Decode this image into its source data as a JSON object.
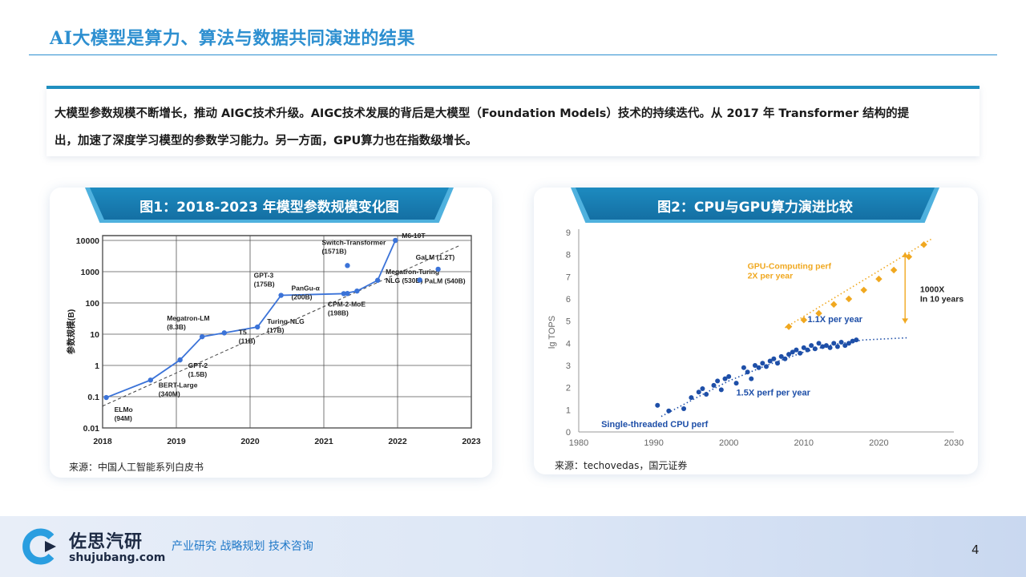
{
  "page": {
    "title": "AI大模型是算力、算法与数据共同演进的结果",
    "intro_line1": "大模型参数规模不断增长，推动 AIGC技术升级。AIGC技术发展的背后是大模型（Foundation Models）技术的持续迭代。从 2017 年 Transformer 结构的提",
    "intro_line2": "出，加速了深度学习模型的参数学习能力。另一方面，GPU算力也在指数级增长。"
  },
  "figure1": {
    "banner": "图1：2018-2023 年模型参数规模变化图",
    "source": "来源：中国人工智能系列白皮书"
  },
  "figure2": {
    "banner": "图2：CPU与GPU算力演进比较",
    "source": "来源：techovedas，国元证券"
  },
  "footer": {
    "brand": "佐思汽研",
    "url": "shujubang.com",
    "slogan": "产业研究  战略规划  技术咨询",
    "page_number": "4"
  },
  "chart_data": [
    {
      "type": "line",
      "ylabel": "参数规模(B)",
      "yscale": "log",
      "xlim": [
        2018,
        2023
      ],
      "ylim": [
        0.01,
        10000
      ],
      "grid": true,
      "x_ticks": [
        "2018",
        "2019",
        "2020",
        "2021",
        "2022",
        "2023"
      ],
      "y_ticks": [
        "0.01",
        "0.1",
        "1",
        "10",
        "100",
        "1000",
        "10000"
      ],
      "series": [
        {
          "points": [
            {
              "x": 2018.05,
              "y": 0.094,
              "label": "ELMo\n(94M)"
            },
            {
              "x": 2018.65,
              "y": 0.34,
              "label": "BERT-Large\n(340M)"
            },
            {
              "x": 2019.05,
              "y": 1.5,
              "label": "GPT-2\n(1.5B)"
            },
            {
              "x": 2019.35,
              "y": 8.3,
              "label": "Megatron-LM\n(8.3B)"
            },
            {
              "x": 2019.65,
              "y": 11,
              "label": "T5\n(11B)"
            },
            {
              "x": 2020.1,
              "y": 17,
              "label": "Turing-NLG\n(17B)"
            },
            {
              "x": 2020.42,
              "y": 175,
              "label": "GPT-3\n(175B)"
            },
            {
              "x": 2021.27,
              "y": 198,
              "label": "CPM-2-MoE\n(198B)"
            },
            {
              "x": 2021.45,
              "y": 240,
              "label": ""
            },
            {
              "x": 2021.73,
              "y": 530,
              "label": "Megatron-Turing\nNLG (530B)"
            },
            {
              "x": 2021.97,
              "y": 10000,
              "label": "M6-10T"
            }
          ]
        }
      ],
      "extra_points": [
        {
          "x": 2021.32,
          "y": 200,
          "label": "PanGu-α\n(200B)"
        },
        {
          "x": 2021.32,
          "y": 1571,
          "label": "Switch-Transformer\n(1571B)"
        },
        {
          "x": 2022.3,
          "y": 540,
          "label": "PaLM (540B)"
        },
        {
          "x": 2022.55,
          "y": 1200,
          "label": "GaLM (1.2T)"
        }
      ],
      "trend": {
        "from": [
          2018,
          0.05
        ],
        "to": [
          2022.85,
          7000
        ]
      }
    },
    {
      "type": "scatter",
      "ylabel": "lg TOPS",
      "xlim": [
        1980,
        2030
      ],
      "ylim": [
        0,
        9
      ],
      "grid": false,
      "x_ticks": [
        "1980",
        "1990",
        "2000",
        "2010",
        "2020",
        "2030"
      ],
      "y_ticks": [
        "0",
        "1",
        "2",
        "3",
        "4",
        "5",
        "6",
        "7",
        "8",
        "9"
      ],
      "series": [
        {
          "name": "Single-threaded CPU perf",
          "color": "#1e4fa8",
          "points": [
            [
              1990.5,
              1.2
            ],
            [
              1992,
              0.95
            ],
            [
              1994,
              1.05
            ],
            [
              1995,
              1.55
            ],
            [
              1996,
              1.8
            ],
            [
              1996.5,
              1.95
            ],
            [
              1997,
              1.7
            ],
            [
              1998,
              2.1
            ],
            [
              1998.5,
              2.3
            ],
            [
              1999,
              1.9
            ],
            [
              1999.5,
              2.4
            ],
            [
              2000,
              2.5
            ],
            [
              2001,
              2.2
            ],
            [
              2002,
              2.9
            ],
            [
              2002.5,
              2.7
            ],
            [
              2003,
              2.4
            ],
            [
              2003.5,
              3.0
            ],
            [
              2004,
              2.9
            ],
            [
              2004.5,
              3.1
            ],
            [
              2005,
              2.95
            ],
            [
              2005.5,
              3.2
            ],
            [
              2006,
              3.3
            ],
            [
              2006.5,
              3.1
            ],
            [
              2007,
              3.4
            ],
            [
              2007.5,
              3.3
            ],
            [
              2008,
              3.5
            ],
            [
              2008.5,
              3.6
            ],
            [
              2009,
              3.7
            ],
            [
              2009.5,
              3.55
            ],
            [
              2010,
              3.8
            ],
            [
              2010.5,
              3.7
            ],
            [
              2011,
              3.9
            ],
            [
              2011.5,
              3.75
            ],
            [
              2012,
              4.0
            ],
            [
              2012.5,
              3.85
            ],
            [
              2013,
              3.9
            ],
            [
              2013.5,
              3.8
            ],
            [
              2014,
              4.0
            ],
            [
              2014.5,
              3.85
            ],
            [
              2015,
              4.05
            ],
            [
              2015.5,
              3.9
            ],
            [
              2016,
              4.0
            ],
            [
              2016.5,
              4.1
            ],
            [
              2017,
              4.15
            ]
          ],
          "trend": [
            [
              1991,
              0.7
            ],
            [
              1996,
              1.6
            ],
            [
              2000,
              2.3
            ],
            [
              2005,
              3.0
            ],
            [
              2010,
              3.6
            ],
            [
              2014,
              3.95
            ],
            [
              2018,
              4.15
            ],
            [
              2024,
              4.25
            ]
          ]
        },
        {
          "name": "GPU-Computing perf",
          "color": "#f0a820",
          "points": [
            [
              2008,
              4.75
            ],
            [
              2010,
              5.05
            ],
            [
              2012,
              5.35
            ],
            [
              2014,
              5.75
            ],
            [
              2016,
              6.0
            ],
            [
              2018,
              6.4
            ],
            [
              2020,
              6.9
            ],
            [
              2022,
              7.3
            ],
            [
              2024,
              7.9
            ],
            [
              2026,
              8.45
            ]
          ],
          "trend": [
            [
              2007.5,
              4.7
            ],
            [
              2027,
              8.7
            ]
          ]
        }
      ],
      "annotations": [
        {
          "text": "GPU-Computing perf",
          "color": "#f0a820"
        },
        {
          "text": "2X per year",
          "color": "#f0a820"
        },
        {
          "text": "1000X",
          "color": "#222222"
        },
        {
          "text": "In 10 years",
          "color": "#222222"
        },
        {
          "text": "1.1X per year",
          "color": "#1e4fa8"
        },
        {
          "text": "1.5X perf per year",
          "color": "#1e4fa8"
        },
        {
          "text": "Single-threaded CPU perf",
          "color": "#1e4fa8"
        }
      ]
    }
  ]
}
